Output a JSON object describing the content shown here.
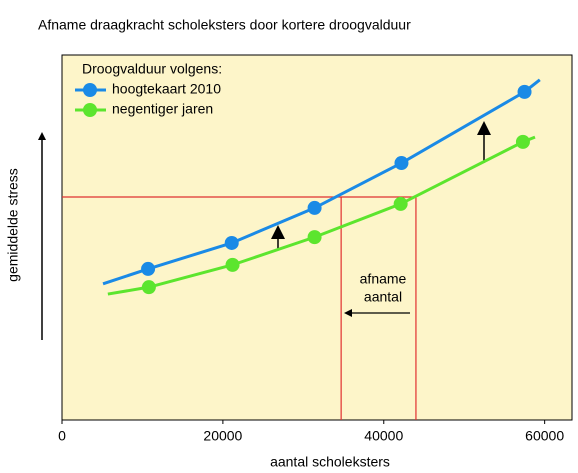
{
  "chart_data": {
    "type": "line",
    "title": "Afname draagkracht scholeksters door kortere droogvalduur",
    "x_label": "aantal scholeksters",
    "y_label": "gemiddelde stress",
    "legend_title": "Droogvalduur volgens:",
    "xlim": [
      0,
      63400
    ],
    "ylim": [
      0,
      100
    ],
    "xticks": [
      0,
      20000,
      40000,
      60000
    ],
    "series": [
      {
        "name": "hoogtekaart 2010",
        "color": "#1a8ae6",
        "x": [
          5100,
          10700,
          21100,
          31400,
          42200,
          57500,
          59400
        ],
        "values": [
          37.3,
          41.4,
          48.5,
          58.1,
          70.4,
          89.9,
          93.2
        ]
      },
      {
        "name": "negentiger jaren",
        "color": "#5ce52e",
        "x": [
          5700,
          10800,
          21200,
          31400,
          42100,
          57300,
          58800
        ],
        "values": [
          34.5,
          36.4,
          42.5,
          50.1,
          59.2,
          76.2,
          77.5
        ]
      }
    ],
    "reference": {
      "y": 61.1,
      "x": [
        34700,
        44000
      ],
      "color": "#e03030"
    },
    "annotation": [
      "afname",
      "aantal"
    ]
  }
}
